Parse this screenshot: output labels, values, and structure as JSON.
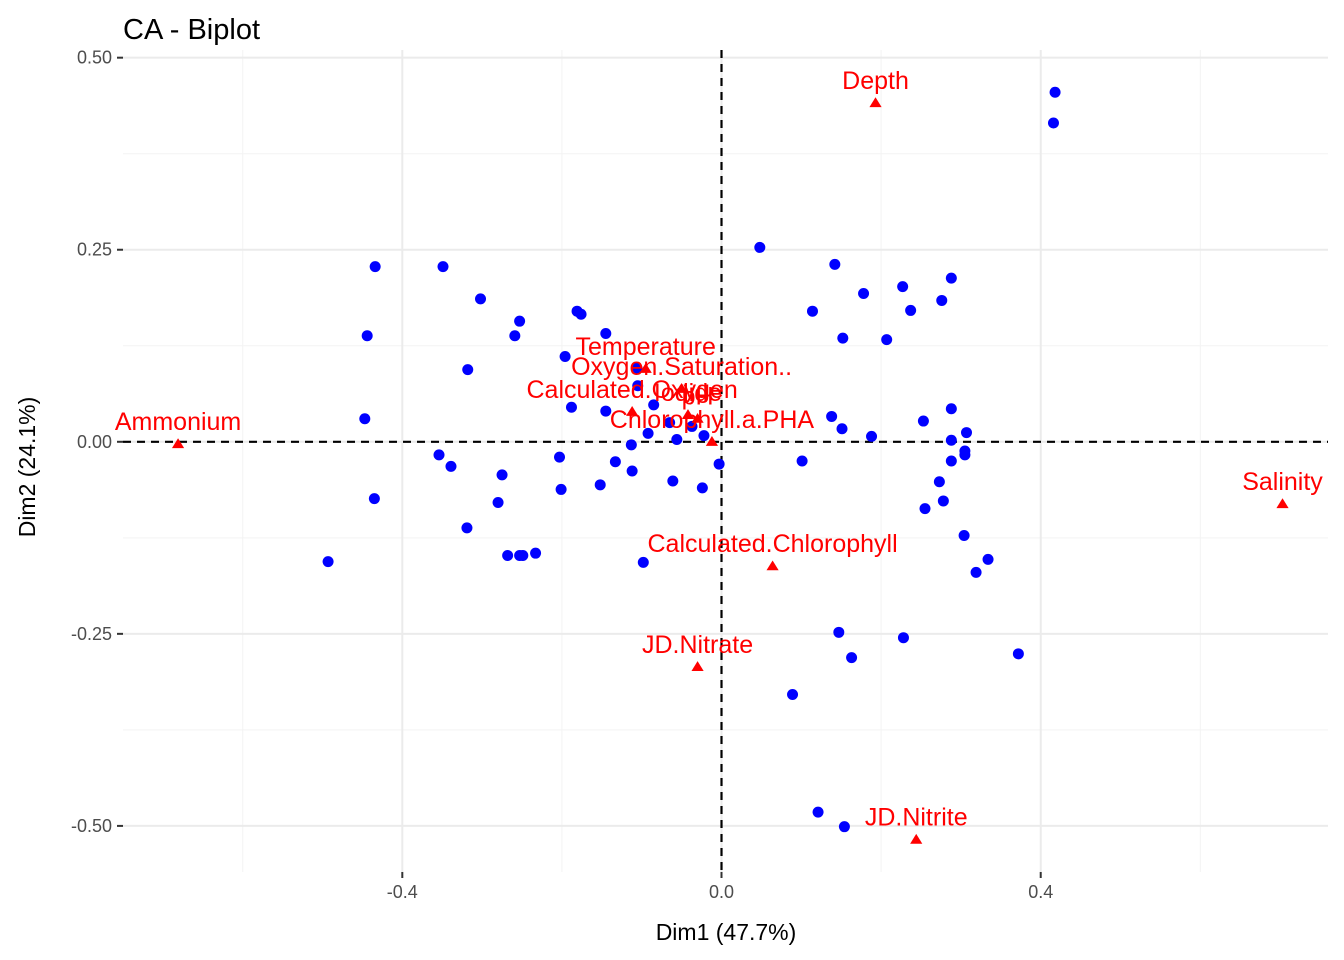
{
  "chart_data": {
    "type": "scatter",
    "title": "CA - Biplot",
    "xlabel": "Dim1 (47.7%)",
    "ylabel": "Dim2 (24.1%)",
    "xlim": [
      -0.75,
      0.76
    ],
    "ylim": [
      -0.56,
      0.51
    ],
    "xticks": [
      -0.4,
      0.0,
      0.4
    ],
    "xtick_labels": [
      "-0.4",
      "0.0",
      "0.4"
    ],
    "yticks": [
      0.5,
      0.25,
      0.0,
      -0.25,
      -0.5
    ],
    "ytick_labels": [
      "0.50",
      "0.25",
      "0.00",
      "-0.25",
      "-0.50"
    ],
    "x_minor": [
      -0.6,
      -0.2,
      0.2,
      0.6
    ],
    "y_minor": [
      0.375,
      0.125,
      -0.125,
      -0.375
    ],
    "grid": true,
    "reference_lines": {
      "x": 0,
      "y": 0
    },
    "colors": {
      "rows": "#0000ff",
      "cols": "#ff0000"
    },
    "series": [
      {
        "name": "rows",
        "marker": "circle",
        "points": [
          [
            0.418,
            0.455
          ],
          [
            0.416,
            0.415
          ],
          [
            0.048,
            0.253
          ],
          [
            0.142,
            0.231
          ],
          [
            0.288,
            0.213
          ],
          [
            0.178,
            0.193
          ],
          [
            0.227,
            0.202
          ],
          [
            0.276,
            0.184
          ],
          [
            0.237,
            0.171
          ],
          [
            0.114,
            0.17
          ],
          [
            0.152,
            0.135
          ],
          [
            0.207,
            0.133
          ],
          [
            -0.434,
            0.228
          ],
          [
            -0.349,
            0.228
          ],
          [
            -0.302,
            0.186
          ],
          [
            -0.253,
            0.157
          ],
          [
            -0.259,
            0.138
          ],
          [
            -0.444,
            0.138
          ],
          [
            -0.181,
            0.17
          ],
          [
            -0.176,
            0.166
          ],
          [
            -0.145,
            0.141
          ],
          [
            -0.196,
            0.111
          ],
          [
            -0.318,
            0.094
          ],
          [
            -0.106,
            0.096
          ],
          [
            -0.447,
            0.03
          ],
          [
            -0.188,
            0.045
          ],
          [
            -0.145,
            0.04
          ],
          [
            -0.105,
            0.073
          ],
          [
            -0.085,
            0.048
          ],
          [
            -0.092,
            0.011
          ],
          [
            -0.113,
            -0.004
          ],
          [
            -0.056,
            0.003
          ],
          [
            -0.065,
            0.025
          ],
          [
            -0.037,
            0.02
          ],
          [
            -0.022,
            0.008
          ],
          [
            -0.003,
            -0.029
          ],
          [
            -0.354,
            -0.017
          ],
          [
            -0.339,
            -0.032
          ],
          [
            -0.275,
            -0.043
          ],
          [
            -0.203,
            -0.02
          ],
          [
            -0.133,
            -0.026
          ],
          [
            -0.112,
            -0.038
          ],
          [
            -0.061,
            -0.051
          ],
          [
            -0.024,
            -0.06
          ],
          [
            -0.435,
            -0.074
          ],
          [
            -0.28,
            -0.079
          ],
          [
            -0.201,
            -0.062
          ],
          [
            -0.152,
            -0.056
          ],
          [
            -0.319,
            -0.112
          ],
          [
            -0.493,
            -0.156
          ],
          [
            -0.268,
            -0.148
          ],
          [
            -0.253,
            -0.148
          ],
          [
            -0.249,
            -0.148
          ],
          [
            -0.233,
            -0.145
          ],
          [
            -0.098,
            -0.157
          ],
          [
            0.288,
            0.043
          ],
          [
            0.253,
            0.027
          ],
          [
            0.307,
            0.012
          ],
          [
            0.288,
            0.002
          ],
          [
            0.305,
            -0.012
          ],
          [
            0.305,
            -0.017
          ],
          [
            0.288,
            -0.025
          ],
          [
            0.273,
            -0.052
          ],
          [
            0.278,
            -0.077
          ],
          [
            0.255,
            -0.087
          ],
          [
            0.188,
            0.007
          ],
          [
            0.151,
            0.017
          ],
          [
            0.138,
            0.033
          ],
          [
            0.101,
            -0.025
          ],
          [
            0.304,
            -0.122
          ],
          [
            0.334,
            -0.153
          ],
          [
            0.319,
            -0.17
          ],
          [
            0.147,
            -0.248
          ],
          [
            0.163,
            -0.281
          ],
          [
            0.228,
            -0.255
          ],
          [
            0.372,
            -0.276
          ],
          [
            0.089,
            -0.329
          ],
          [
            0.121,
            -0.482
          ],
          [
            0.154,
            -0.501
          ]
        ]
      },
      {
        "name": "cols",
        "marker": "triangle",
        "points": [
          {
            "label": "Ammonium",
            "x": -0.681,
            "y": -0.003
          },
          {
            "label": "Depth",
            "x": 0.193,
            "y": 0.441
          },
          {
            "label": "Salinity",
            "x": 0.703,
            "y": -0.081
          },
          {
            "label": "Temperature",
            "x": -0.095,
            "y": 0.095
          },
          {
            "label": "Oxygen.Saturation..",
            "x": -0.05,
            "y": 0.069
          },
          {
            "label": "Calculated.Oxygen",
            "x": -0.112,
            "y": 0.039
          },
          {
            "label": "Iodide",
            "x": -0.042,
            "y": 0.035
          },
          {
            "label": "pH",
            "x": -0.03,
            "y": 0.03
          },
          {
            "label": "Chlorophyll.a.PHA",
            "x": -0.012,
            "y": 0.0
          },
          {
            "label": "Calculated.Chlorophyll",
            "x": 0.064,
            "y": -0.162
          },
          {
            "label": "JD.Nitrate",
            "x": -0.03,
            "y": -0.293
          },
          {
            "label": "JD.Nitrite",
            "x": 0.244,
            "y": -0.518
          }
        ]
      }
    ]
  }
}
